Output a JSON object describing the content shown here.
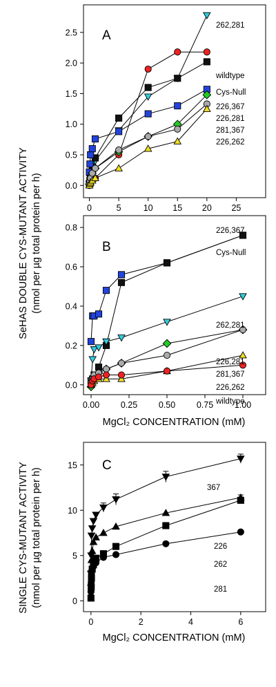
{
  "figure": {
    "ylabel_main_ab": "SeHAS DOUBLE CYS-MUTANT ACTIVITY",
    "ylabel_sub_ab": "(nmol per µg total protein per h)",
    "ylabel_main_c": "SINGLE CYS-MUTANT ACTIVITY",
    "ylabel_sub_c": "(nmol per µg total protein per h)"
  },
  "chart_data": [
    {
      "panel": "A",
      "type": "line",
      "xlim": [
        -1,
        30
      ],
      "ylim": [
        -0.2,
        2.95
      ],
      "xticks": [
        0,
        5,
        10,
        15,
        20,
        25
      ],
      "yticks": [
        0.0,
        0.5,
        1.0,
        1.5,
        2.0,
        2.5
      ],
      "ytick_labels": [
        "0.0",
        "0.5",
        "1.0",
        "1.5",
        "2.0",
        "2.5"
      ],
      "xlabel": "",
      "series": [
        {
          "name": "262,281",
          "marker": "triangle-down",
          "color": "#33ccdd",
          "x": [
            0,
            0.1,
            0.2,
            0.5,
            1,
            5,
            10,
            15,
            20
          ],
          "y": [
            0.02,
            0.12,
            0.2,
            0.3,
            0.4,
            0.9,
            1.45,
            1.75,
            2.78
          ]
        },
        {
          "name": "wildtype",
          "marker": "circle",
          "color": "#ee2222",
          "x": [
            0,
            0.1,
            0.2,
            0.5,
            1,
            5,
            10,
            15,
            20
          ],
          "y": [
            0.0,
            0.02,
            0.05,
            0.08,
            0.12,
            0.5,
            1.9,
            2.18,
            2.18
          ]
        },
        {
          "name": "Cys-Null",
          "marker": "square",
          "color": "#111111",
          "x": [
            0,
            0.1,
            0.2,
            0.5,
            1,
            5,
            10,
            15,
            20
          ],
          "y": [
            0.02,
            0.08,
            0.15,
            0.25,
            0.45,
            1.1,
            1.6,
            1.75,
            2.02
          ]
        },
        {
          "name": "226,367",
          "marker": "square",
          "color": "#2244dd",
          "x": [
            0,
            0.1,
            0.2,
            0.5,
            1,
            5,
            10,
            15,
            20
          ],
          "y": [
            0.22,
            0.35,
            0.5,
            0.6,
            0.76,
            0.88,
            1.17,
            1.3,
            1.57
          ]
        },
        {
          "name": "226,281",
          "marker": "diamond",
          "color": "#22cc22",
          "x": [
            0,
            0.1,
            0.2,
            0.5,
            1,
            5,
            10,
            15,
            20
          ],
          "y": [
            0.02,
            0.08,
            0.12,
            0.2,
            0.28,
            0.55,
            0.8,
            1.0,
            1.48
          ]
        },
        {
          "name": "281,367",
          "marker": "circle",
          "color": "#aaaaaa",
          "x": [
            0,
            0.1,
            0.2,
            0.5,
            1,
            5,
            10,
            15,
            20
          ],
          "y": [
            0.02,
            0.07,
            0.12,
            0.2,
            0.28,
            0.58,
            0.8,
            0.92,
            1.33
          ]
        },
        {
          "name": "226,262",
          "marker": "triangle-up",
          "color": "#eedd22",
          "x": [
            0,
            0.1,
            0.2,
            0.5,
            1,
            5,
            10,
            15,
            20
          ],
          "y": [
            0.0,
            0.03,
            0.05,
            0.08,
            0.12,
            0.28,
            0.6,
            0.72,
            1.25
          ]
        }
      ],
      "labels": [
        "262,281",
        "wildtype",
        "Cys-Null",
        "226,367",
        "226,281",
        "281,367",
        "226,262"
      ]
    },
    {
      "panel": "B",
      "type": "line",
      "xlim": [
        -0.05,
        1.15
      ],
      "ylim": [
        -0.05,
        0.86
      ],
      "xticks": [
        0,
        0.25,
        0.5,
        0.75,
        1.0
      ],
      "xtick_labels": [
        "0.00",
        "0.25",
        "0.50",
        "0.75",
        "1.00"
      ],
      "yticks": [
        0.0,
        0.2,
        0.4,
        0.6,
        0.8
      ],
      "ytick_labels": [
        "0.0",
        "0.2",
        "0.4",
        "0.6",
        "0.8"
      ],
      "xlabel": "MgCl₂ CONCENTRATION (mM)",
      "series": [
        {
          "name": "226,367",
          "marker": "square",
          "color": "#2244dd",
          "x": [
            0,
            0.01,
            0.02,
            0.05,
            0.1,
            0.2,
            0.5,
            1.0
          ],
          "y": [
            0.22,
            0.35,
            0.35,
            0.36,
            0.48,
            0.56,
            0.62,
            0.76
          ]
        },
        {
          "name": "Cys-Null",
          "marker": "square",
          "color": "#111111",
          "x": [
            0,
            0.01,
            0.02,
            0.05,
            0.1,
            0.2,
            0.5,
            1.0
          ],
          "y": [
            0.02,
            0.03,
            0.05,
            0.09,
            0.2,
            0.52,
            0.62,
            0.76
          ]
        },
        {
          "name": "262,281",
          "marker": "triangle-down",
          "color": "#33ccdd",
          "x": [
            0,
            0.01,
            0.02,
            0.05,
            0.1,
            0.2,
            0.5,
            1.0
          ],
          "y": [
            0.02,
            0.13,
            0.18,
            0.19,
            0.22,
            0.24,
            0.32,
            0.45
          ]
        },
        {
          "name": "226,281",
          "marker": "diamond",
          "color": "#22cc22",
          "x": [
            0,
            0.01,
            0.02,
            0.05,
            0.1,
            0.2,
            0.5,
            1.0
          ],
          "y": [
            -0.01,
            0.02,
            0.04,
            0.06,
            0.08,
            0.11,
            0.21,
            0.28
          ]
        },
        {
          "name": "281,367",
          "marker": "circle",
          "color": "#aaaaaa",
          "x": [
            0,
            0.01,
            0.02,
            0.05,
            0.1,
            0.2,
            0.5,
            1.0
          ],
          "y": [
            0.01,
            0.03,
            0.05,
            0.06,
            0.08,
            0.11,
            0.15,
            0.28
          ]
        },
        {
          "name": "226,262",
          "marker": "triangle-up",
          "color": "#eedd22",
          "x": [
            0,
            0.01,
            0.02,
            0.05,
            0.1,
            0.2,
            0.5,
            1.0
          ],
          "y": [
            0.0,
            0.01,
            0.02,
            0.03,
            0.03,
            0.03,
            0.07,
            0.15
          ]
        },
        {
          "name": "wildtype",
          "marker": "circle",
          "color": "#ee2222",
          "x": [
            0,
            0.01,
            0.02,
            0.05,
            0.1,
            0.2,
            0.5,
            1.0
          ],
          "y": [
            0.0,
            0.02,
            0.03,
            0.04,
            0.05,
            0.05,
            0.07,
            0.1
          ]
        }
      ],
      "labels": [
        "226,367",
        "Cys-Null",
        "262,281",
        "226,281",
        "281,367",
        "226,262",
        "wildtype"
      ]
    },
    {
      "panel": "C",
      "type": "line",
      "xlim": [
        -0.3,
        7.0
      ],
      "ylim": [
        -1.2,
        17.5
      ],
      "xticks": [
        0,
        2,
        4,
        6
      ],
      "yticks": [
        0,
        5,
        10,
        15
      ],
      "xlabel": "MgCl₂ CONCENTRATION (mM)",
      "series": [
        {
          "name": "367",
          "marker": "triangle-down",
          "color": "#000000",
          "x": [
            0,
            0.01,
            0.02,
            0.05,
            0.1,
            0.2,
            0.5,
            1,
            3,
            6
          ],
          "y": [
            3.0,
            5.0,
            7.2,
            8.0,
            8.8,
            9.5,
            10.3,
            11.2,
            13.7,
            15.7
          ],
          "err": [
            0,
            0,
            0,
            0,
            0,
            0,
            0.5,
            0.6,
            0.6,
            0.5
          ]
        },
        {
          "name": "226",
          "marker": "triangle-up",
          "color": "#000000",
          "x": [
            0,
            0.01,
            0.02,
            0.05,
            0.1,
            0.2,
            0.5,
            1,
            3,
            6
          ],
          "y": [
            2.0,
            3.5,
            4.5,
            5.5,
            6.5,
            7.0,
            7.5,
            8.2,
            9.7,
            11.4
          ],
          "err": [
            0,
            0,
            0,
            0,
            0,
            0,
            0,
            0,
            0,
            0.3
          ]
        },
        {
          "name": "262",
          "marker": "square",
          "color": "#000000",
          "x": [
            0,
            0.01,
            0.02,
            0.05,
            0.1,
            0.2,
            0.5,
            1,
            3,
            6
          ],
          "y": [
            0.3,
            1.5,
            2.5,
            3.5,
            4.0,
            4.7,
            5.2,
            6.0,
            8.3,
            11.1
          ],
          "err": [
            0,
            0,
            0,
            0,
            0,
            0,
            0,
            0,
            0,
            0.3
          ]
        },
        {
          "name": "281",
          "marker": "circle",
          "color": "#000000",
          "x": [
            0,
            0.01,
            0.02,
            0.05,
            0.1,
            0.2,
            0.5,
            1,
            3,
            6
          ],
          "y": [
            1.0,
            2.0,
            3.0,
            3.5,
            3.8,
            4.2,
            4.8,
            5.1,
            6.3,
            7.6
          ],
          "err": [
            0,
            0,
            0,
            0,
            0,
            0,
            0,
            0,
            0,
            0
          ]
        }
      ],
      "labels": [
        "367",
        "226",
        "262",
        "281"
      ]
    }
  ]
}
